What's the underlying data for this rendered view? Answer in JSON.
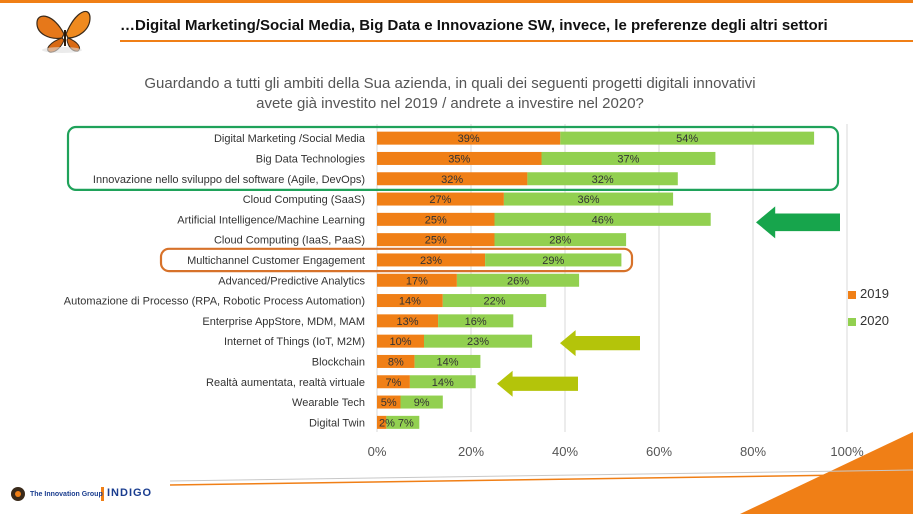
{
  "header": {
    "title": "…Digital Marketing/Social Media, Big Data e Innovazione SW, invece, le preferenze degli altri settori"
  },
  "question": {
    "line1": "Guardando a tutti gli ambiti della Sua azienda, in quali dei seguenti progetti digitali innovativi",
    "line2": "avete già investito nel 2019 / andrete a investire nel 2020?"
  },
  "colors": {
    "series_2019": "#f07f16",
    "series_2020": "#92d050",
    "highlight_green": "#1fa25a",
    "highlight_orange": "#d7722a",
    "arrow_dark_green": "#17a54c",
    "arrow_lime": "#b4c40a"
  },
  "chart_data": {
    "type": "bar",
    "orientation": "horizontal",
    "stacked": true,
    "categories": [
      "Digital Marketing /Social Media",
      "Big Data Technologies",
      "Innovazione nello sviluppo del software (Agile, DevOps)",
      "Cloud Computing (SaaS)",
      "Artificial Intelligence/Machine Learning",
      "Cloud Computing (IaaS, PaaS)",
      "Multichannel Customer Engagement",
      "Advanced/Predictive Analytics",
      "Automazione di Processo (RPA, Robotic Process Automation)",
      "Enterprise AppStore, MDM, MAM",
      "Internet of Things (IoT, M2M)",
      "Blockchain",
      "Realtà aumentata, realtà virtuale",
      "Wearable Tech",
      "Digital Twin"
    ],
    "series": [
      {
        "name": "2019",
        "values": [
          39,
          35,
          32,
          27,
          25,
          25,
          23,
          17,
          14,
          13,
          10,
          8,
          7,
          5,
          2
        ],
        "labels": [
          "39%",
          "35%",
          "32%",
          "27%",
          "25%",
          "25%",
          "23%",
          "17%",
          "14%",
          "13%",
          "10%",
          "8%",
          "7%",
          "5%",
          "2%"
        ]
      },
      {
        "name": "2020",
        "values": [
          54,
          37,
          32,
          36,
          46,
          28,
          29,
          26,
          22,
          16,
          23,
          14,
          14,
          9,
          7
        ],
        "labels": [
          "54%",
          "37%",
          "32%",
          "36%",
          "46%",
          "28%",
          "29%",
          "26%",
          "22%",
          "16%",
          "23%",
          "14%",
          "14%",
          "9%",
          "7%"
        ]
      }
    ],
    "xlim": [
      0,
      100
    ],
    "xticks": [
      0,
      20,
      40,
      60,
      80,
      100
    ],
    "xtick_labels": [
      "0%",
      "20%",
      "40%",
      "60%",
      "80%",
      "100%"
    ],
    "grid": "vertical",
    "legend": "right",
    "highlights": [
      {
        "shape": "rounded-rect",
        "rows": [
          0,
          1,
          2
        ],
        "color": "green"
      },
      {
        "shape": "rounded-rect",
        "rows": [
          6
        ],
        "color": "orange"
      }
    ],
    "arrows": [
      {
        "row": 4,
        "color": "dark-green"
      },
      {
        "row": 10,
        "color": "lime"
      },
      {
        "row": 12,
        "color": "lime"
      }
    ]
  },
  "footer": {
    "brand_left": "The Innovation Group",
    "brand_right": "INDIGO"
  }
}
